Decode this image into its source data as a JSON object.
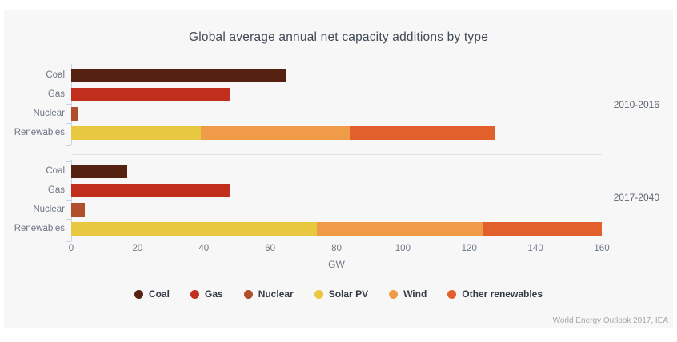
{
  "title": "Global average annual net capacity additions by type",
  "source": "World Energy Outlook 2017, IEA",
  "colors": {
    "panel_background": "#f7f7f7",
    "page_background": "#ffffff",
    "axis": "#c8d3e6",
    "divider": "#e3e3e3"
  },
  "chart_data": {
    "type": "bar",
    "orientation": "horizontal",
    "stacked": true,
    "unit": "GW",
    "xlabel": "GW",
    "xlim": [
      0,
      160
    ],
    "xticks": [
      0,
      20,
      40,
      60,
      80,
      100,
      120,
      140,
      160
    ],
    "grid": false,
    "legend_position": "bottom",
    "legend": [
      {
        "name": "Coal",
        "color": "#552211"
      },
      {
        "name": "Gas",
        "color": "#c22f1e"
      },
      {
        "name": "Nuclear",
        "color": "#b04f2c"
      },
      {
        "name": "Solar PV",
        "color": "#e8c840"
      },
      {
        "name": "Wind",
        "color": "#f09b47"
      },
      {
        "name": "Other renewables",
        "color": "#e2602c"
      }
    ],
    "groups": [
      {
        "label": "2010-2016",
        "rows": [
          {
            "category": "Coal",
            "segments": [
              {
                "series": "Coal",
                "value": 65
              }
            ]
          },
          {
            "category": "Gas",
            "segments": [
              {
                "series": "Gas",
                "value": 48
              }
            ]
          },
          {
            "category": "Nuclear",
            "segments": [
              {
                "series": "Nuclear",
                "value": 2
              }
            ]
          },
          {
            "category": "Renewables",
            "segments": [
              {
                "series": "Solar PV",
                "value": 39
              },
              {
                "series": "Wind",
                "value": 45
              },
              {
                "series": "Other renewables",
                "value": 44
              }
            ]
          }
        ]
      },
      {
        "label": "2017-2040",
        "rows": [
          {
            "category": "Coal",
            "segments": [
              {
                "series": "Coal",
                "value": 17
              }
            ]
          },
          {
            "category": "Gas",
            "segments": [
              {
                "series": "Gas",
                "value": 48
              }
            ]
          },
          {
            "category": "Nuclear",
            "segments": [
              {
                "series": "Nuclear",
                "value": 4
              }
            ]
          },
          {
            "category": "Renewables",
            "segments": [
              {
                "series": "Solar PV",
                "value": 74
              },
              {
                "series": "Wind",
                "value": 50
              },
              {
                "series": "Other renewables",
                "value": 36
              }
            ]
          }
        ]
      }
    ]
  }
}
